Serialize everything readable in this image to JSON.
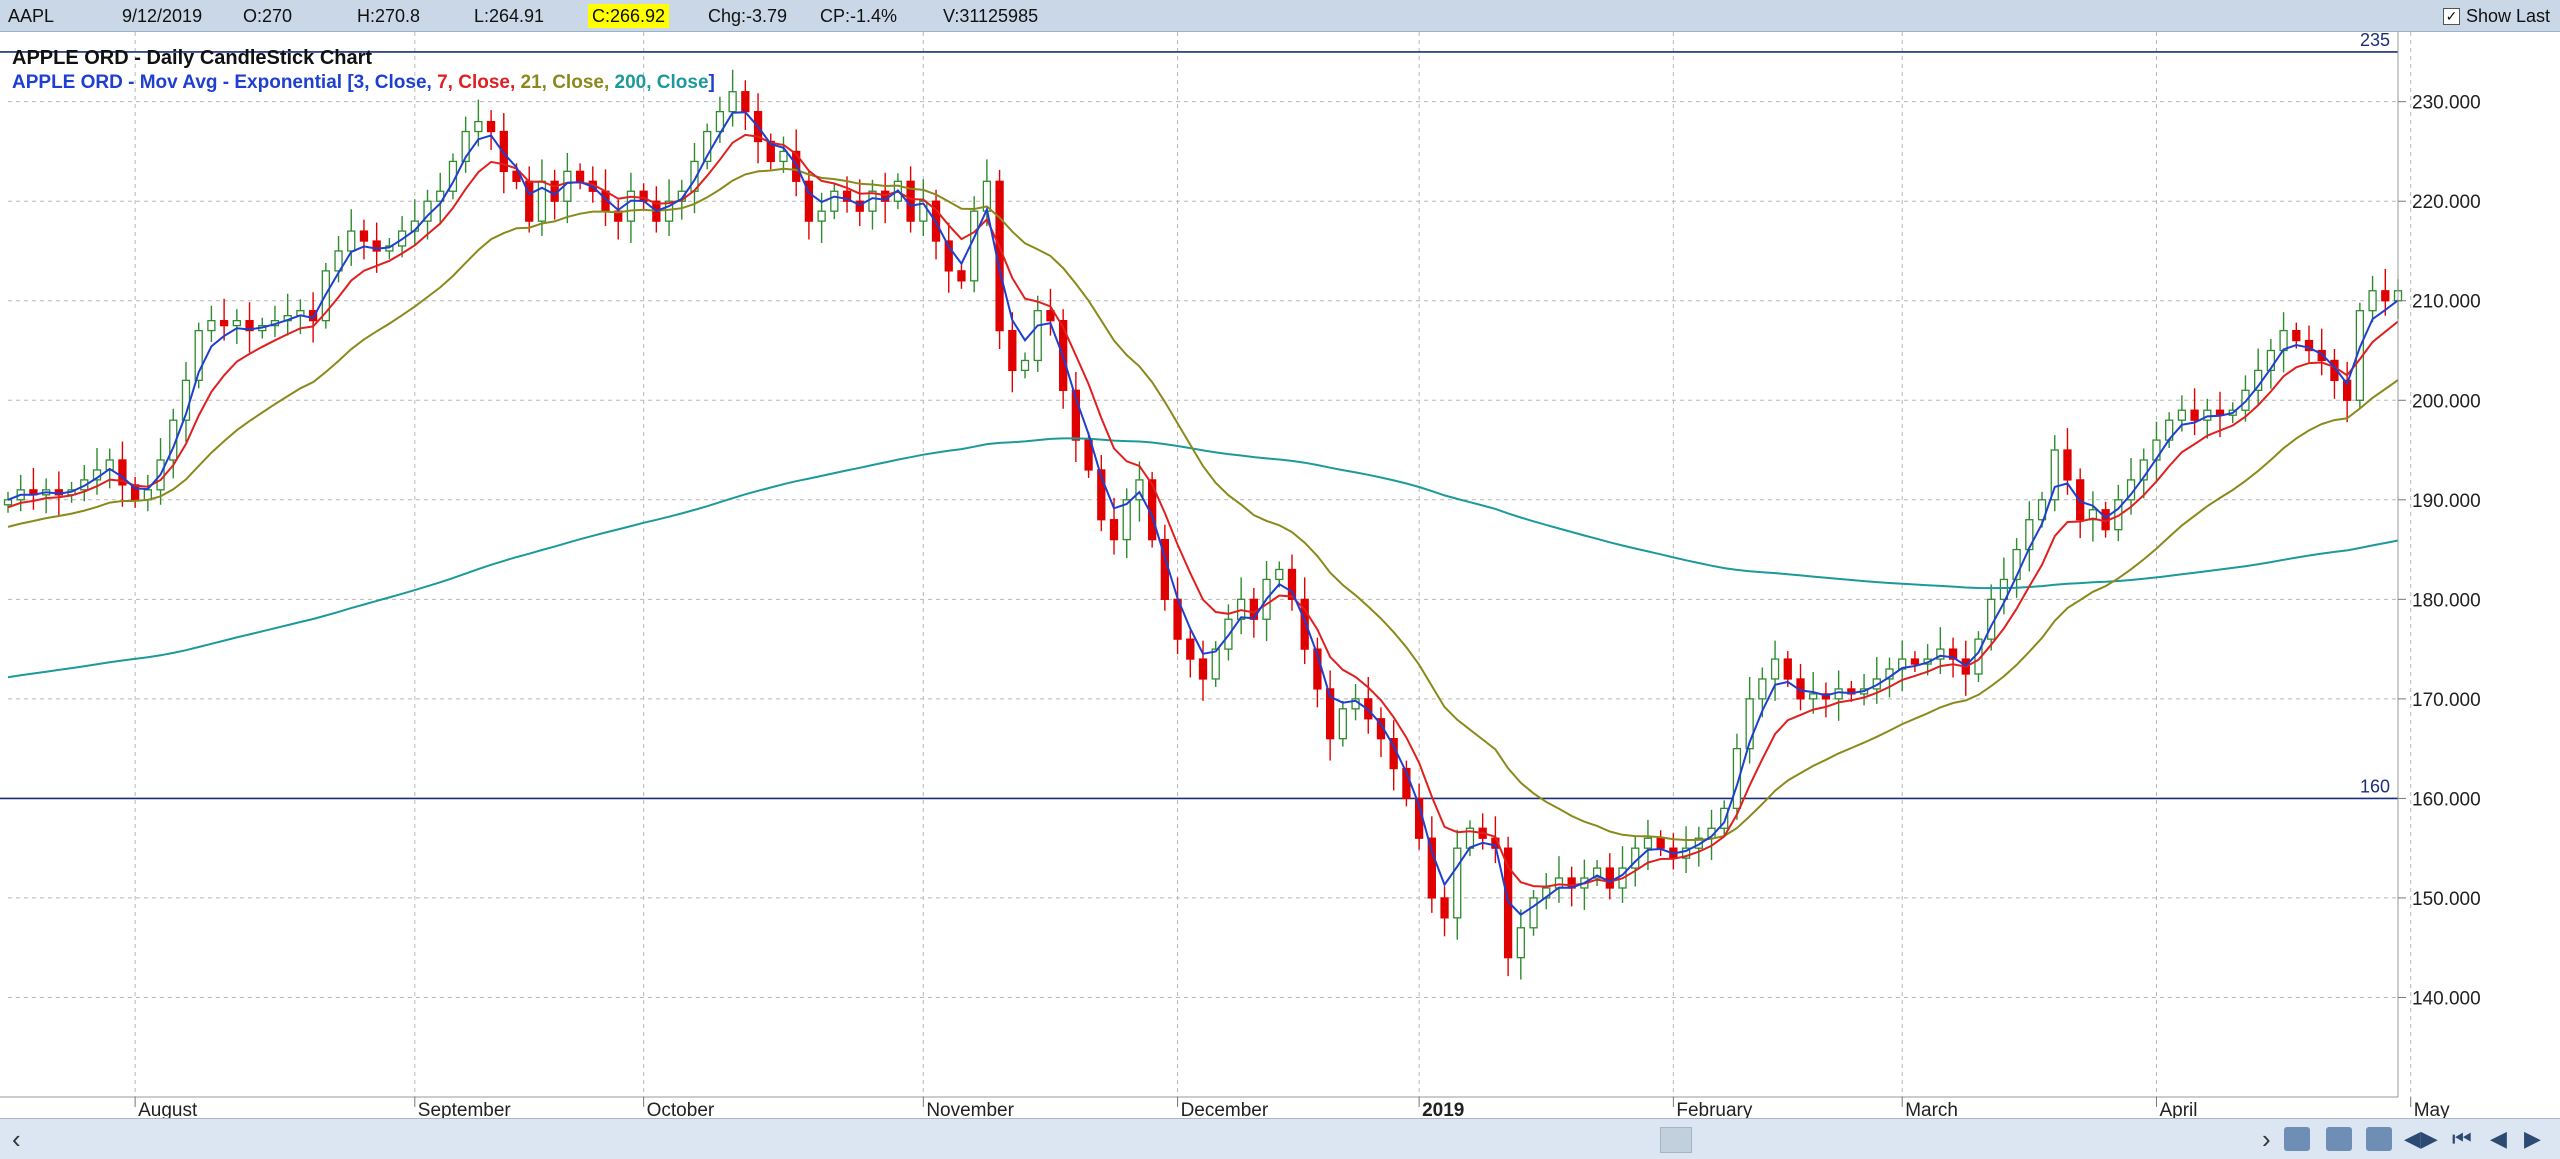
{
  "header": {
    "symbol": "AAPL",
    "date": "9/12/2019",
    "open": "O:270",
    "high": "H:270.8",
    "low": "L:264.91",
    "close": "C:266.92",
    "change": "Chg:-3.79",
    "change_pct": "CP:-1.4%",
    "volume": "V:31125985",
    "show_last_label": "Show Last",
    "show_last_checked": "✓"
  },
  "chart_data": {
    "type": "candlestick",
    "title": "APPLE ORD - Daily CandleStick Chart",
    "legend": {
      "prefix": "APPLE ORD - Mov Avg - Exponential [",
      "items": [
        {
          "text": "3, Close, ",
          "color": "#1f3fd0"
        },
        {
          "text": "7, Close, ",
          "color": "#e02020"
        },
        {
          "text": "21, Close, ",
          "color": "#8a8a1c"
        },
        {
          "text": "200, Close",
          "color": "#1c9a9a"
        }
      ],
      "suffix": "]"
    },
    "ylim": [
      130,
      237
    ],
    "y_ticks": [
      "140.000",
      "150.000",
      "160.000",
      "170.000",
      "180.000",
      "190.000",
      "200.000",
      "210.000",
      "220.000",
      "230.000"
    ],
    "y_tick_values": [
      140,
      150,
      160,
      170,
      180,
      190,
      200,
      210,
      220,
      230
    ],
    "x_labels": [
      {
        "label": "August",
        "index": 10,
        "bold": false
      },
      {
        "label": "September",
        "index": 32,
        "bold": false
      },
      {
        "label": "October",
        "index": 50,
        "bold": false
      },
      {
        "label": "November",
        "index": 72,
        "bold": false
      },
      {
        "label": "December",
        "index": 92,
        "bold": false
      },
      {
        "label": "2019",
        "index": 111,
        "bold": true
      },
      {
        "label": "February",
        "index": 131,
        "bold": false
      },
      {
        "label": "March",
        "index": 149,
        "bold": false
      },
      {
        "label": "April",
        "index": 169,
        "bold": false
      },
      {
        "label": "May",
        "index": 189,
        "bold": false
      }
    ],
    "horizontal_lines": [
      {
        "value": 235,
        "label": "235",
        "color": "#1c2f7a"
      },
      {
        "value": 160,
        "label": "160",
        "color": "#1c2f7a"
      }
    ],
    "grid": true,
    "up_color": "#2e8b2e",
    "down_color": "#e00000",
    "ema_colors": {
      "ema3": "#1f3fd0",
      "ema7": "#e02020",
      "ema21": "#8a8a1c",
      "ema200": "#1c9a9a"
    },
    "closes": [
      190,
      191,
      190.5,
      191,
      190.5,
      191,
      192,
      193,
      194,
      191.5,
      190,
      191,
      194,
      198,
      202,
      207,
      208,
      207.5,
      208,
      207,
      207.5,
      208,
      208.5,
      209,
      208,
      213,
      215,
      217,
      216,
      215,
      215.5,
      217,
      218,
      220,
      221,
      224,
      227,
      228,
      227,
      223,
      222,
      218,
      222,
      220,
      223,
      222,
      221,
      219,
      218,
      221,
      220,
      218,
      220,
      221,
      224,
      227,
      229,
      231,
      229,
      226,
      224,
      225,
      222,
      218,
      219,
      221,
      220,
      219,
      221,
      220,
      222,
      218,
      220,
      216,
      213,
      212,
      219,
      222,
      207,
      203,
      204,
      209,
      208,
      201,
      196,
      193,
      188,
      186,
      190,
      192,
      186,
      180,
      176,
      174,
      172,
      175,
      178,
      180,
      178,
      182,
      183,
      180,
      175,
      171,
      166,
      169,
      170,
      168,
      166,
      163,
      160,
      156,
      150,
      148,
      155,
      157,
      156,
      155,
      144,
      147,
      150,
      151,
      152,
      151,
      152,
      153,
      151,
      153,
      155,
      156,
      155,
      154,
      155,
      156,
      157,
      159,
      165,
      170,
      172,
      174,
      172,
      170,
      170.5,
      170,
      171,
      170.5,
      171,
      172,
      173,
      174,
      173.5,
      174,
      175,
      174,
      172.5,
      176,
      180,
      182,
      185,
      188,
      190,
      195,
      192,
      188,
      189,
      187,
      190,
      192,
      194,
      196,
      198,
      199,
      198,
      199,
      198.5,
      199,
      201,
      203,
      205,
      207,
      206,
      205,
      204,
      202,
      200,
      209,
      211,
      210,
      211
    ]
  },
  "nav": {
    "left_arrow": "‹",
    "right_arrow": "›",
    "buttons": [
      "◀▶",
      "⏮",
      "◀",
      "▶"
    ]
  }
}
